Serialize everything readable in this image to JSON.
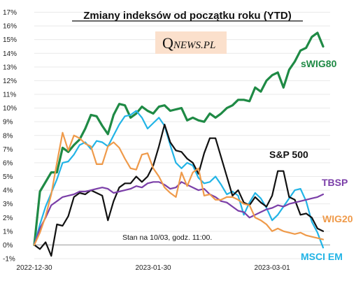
{
  "chart_data": {
    "type": "line",
    "title": "Zmiany indeksów od początku roku (YTD)",
    "logo": {
      "q": "Q",
      "rest": "NEWS.PL"
    },
    "note": "Stan na 10/03, godz. 11:00.",
    "ylim": [
      -1,
      17
    ],
    "yticks": [
      "-1%",
      "0%",
      "1%",
      "2%",
      "3%",
      "4%",
      "5%",
      "6%",
      "7%",
      "8%",
      "9%",
      "10%",
      "11%",
      "12%",
      "13%",
      "14%",
      "15%",
      "16%",
      "17%"
    ],
    "xticks": [
      {
        "label": "2022-12-30",
        "index": 0
      },
      {
        "label": "2023-01-30",
        "index": 21
      },
      {
        "label": "2023-03-01",
        "index": 42
      }
    ],
    "series": [
      {
        "name": "sWIG80",
        "color": "#1f8a45",
        "width": 3.2,
        "values": [
          0,
          3.9,
          4.6,
          5.3,
          5.3,
          7.1,
          6.8,
          7.3,
          7.7,
          8.5,
          9.5,
          9.4,
          8.7,
          8.1,
          9.5,
          10.3,
          10.2,
          9.3,
          9.6,
          10.1,
          9.8,
          9.6,
          10.1,
          10.2,
          9.8,
          9.9,
          10.0,
          9.1,
          9.3,
          9.1,
          9.0,
          9.6,
          9.3,
          9.6,
          10.0,
          10.2,
          10.6,
          10.6,
          10.5,
          11.5,
          11.2,
          12.0,
          12.4,
          12.6,
          11.5,
          12.8,
          13.4,
          14.2,
          14.4,
          15.2,
          15.5,
          14.5
        ]
      },
      {
        "name": "MSCI EM",
        "color": "#22b4e6",
        "width": 2.2,
        "values": [
          0,
          1.5,
          2.8,
          3.8,
          4.8,
          6.0,
          6.1,
          6.6,
          7.3,
          7.5,
          7.0,
          7.6,
          7.5,
          7.2,
          8.0,
          8.8,
          9.4,
          9.5,
          9.8,
          9.3,
          8.5,
          8.9,
          9.3,
          8.7,
          7.3,
          6.0,
          5.6,
          6.0,
          5.8,
          4.9,
          4.5,
          4.6,
          5.0,
          4.4,
          3.7,
          3.9,
          3.6,
          2.2,
          3.1,
          3.8,
          3.4,
          2.7,
          1.8,
          2.2,
          2.8,
          3.4,
          4.0,
          4.1,
          3.2,
          1.7,
          0.9,
          -0.2
        ]
      },
      {
        "name": "S&P 500",
        "color": "#111111",
        "width": 2.2,
        "values": [
          0,
          -0.3,
          0.2,
          -0.8,
          1.5,
          1.4,
          2.1,
          3.5,
          3.8,
          3.7,
          4.0,
          3.8,
          3.6,
          1.8,
          3.2,
          4.2,
          4.5,
          4.5,
          5.0,
          4.6,
          5.0,
          5.8,
          7.2,
          8.8,
          7.5,
          6.9,
          6.8,
          6.3,
          6.0,
          5.2,
          6.7,
          7.8,
          7.8,
          6.4,
          5.0,
          3.6,
          4.0,
          3.1,
          2.9,
          3.5,
          3.1,
          2.8,
          3.6,
          5.4,
          5.4,
          3.5,
          3.3,
          2.2,
          2.3,
          2.0,
          1.2,
          1.0
        ]
      },
      {
        "name": "TBSP",
        "color": "#7b3fa8",
        "width": 2.2,
        "values": [
          0,
          1.2,
          2.0,
          2.9,
          3.2,
          3.5,
          3.6,
          3.7,
          3.9,
          3.9,
          4.0,
          4.1,
          4.2,
          4.1,
          3.8,
          3.9,
          4.0,
          4.1,
          4.3,
          4.2,
          4.5,
          4.6,
          4.6,
          4.4,
          4.1,
          4.2,
          4.6,
          4.4,
          4.2,
          4.0,
          4.1,
          3.7,
          3.5,
          3.2,
          3.1,
          2.8,
          2.5,
          2.4,
          2.0,
          2.2,
          2.4,
          2.6,
          2.7,
          2.9,
          2.8,
          3.0,
          3.1,
          3.2,
          3.3,
          3.4,
          3.5,
          3.7
        ]
      },
      {
        "name": "WIG20",
        "color": "#ef9a4a",
        "width": 2.2,
        "values": [
          0,
          0.9,
          2.1,
          3.7,
          6.0,
          8.2,
          6.9,
          8.0,
          7.8,
          7.4,
          7.2,
          5.9,
          5.9,
          7.2,
          7.5,
          7.1,
          6.3,
          5.6,
          5.5,
          6.6,
          6.7,
          5.6,
          5.0,
          4.2,
          3.8,
          3.5,
          5.3,
          4.3,
          5.3,
          5.6,
          3.6,
          3.7,
          3.3,
          3.3,
          3.5,
          3.5,
          3.3,
          3.0,
          2.9,
          2.0,
          1.8,
          1.5,
          1.0,
          1.2,
          1.0,
          0.9,
          0.8,
          0.9,
          0.7,
          0.6,
          0.5,
          0.4
        ]
      }
    ]
  }
}
